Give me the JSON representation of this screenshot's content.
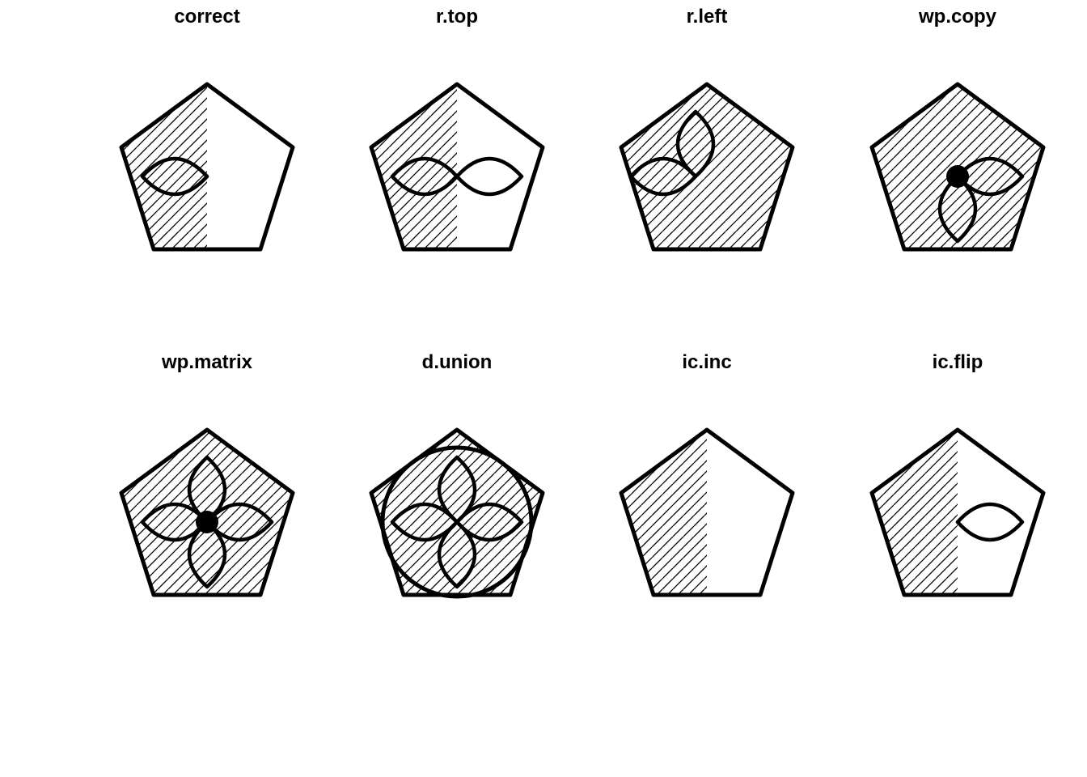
{
  "figure": {
    "panels": [
      {
        "id": "correct",
        "title": "correct",
        "hatch": "left",
        "petals": [
          "left"
        ],
        "dot": false,
        "circle": false
      },
      {
        "id": "r-top",
        "title": "r.top",
        "hatch": "left",
        "petals": [
          "left",
          "right"
        ],
        "dot": false,
        "circle": false
      },
      {
        "id": "r-left",
        "title": "r.left",
        "hatch": "full",
        "petals": [
          "left",
          "up"
        ],
        "dot": false,
        "circle": false
      },
      {
        "id": "wp-copy",
        "title": "wp.copy",
        "hatch": "full",
        "petals": [
          "right",
          "down"
        ],
        "dot": true,
        "circle": false
      },
      {
        "id": "wp-matrix",
        "title": "wp.matrix",
        "hatch": "full",
        "petals": [
          "left",
          "right",
          "up",
          "down"
        ],
        "dot": true,
        "circle": false
      },
      {
        "id": "d-union",
        "title": "d.union",
        "hatch": "full",
        "petals": [
          "left",
          "right",
          "up",
          "down"
        ],
        "dot": false,
        "circle": true
      },
      {
        "id": "ic-inc",
        "title": "ic.inc",
        "hatch": "left",
        "petals": [],
        "dot": false,
        "circle": false
      },
      {
        "id": "ic-flip",
        "title": "ic.flip",
        "hatch": "left",
        "petals": [
          "right"
        ],
        "dot": false,
        "circle": false
      }
    ]
  },
  "chart_data": {
    "type": "diagram",
    "panels": [
      "correct",
      "r.top",
      "r.left",
      "wp.copy",
      "wp.matrix",
      "d.union",
      "ic.inc",
      "ic.flip"
    ]
  }
}
